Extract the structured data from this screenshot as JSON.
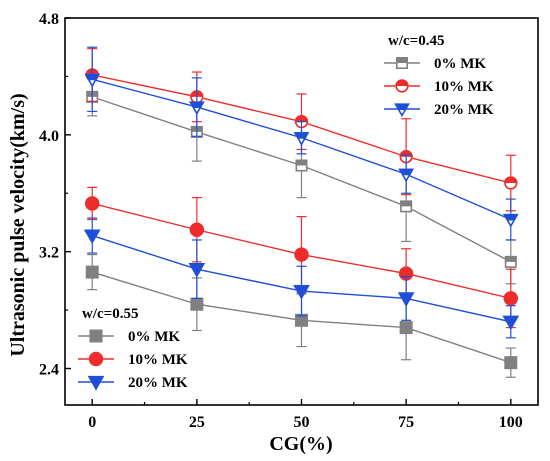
{
  "chart_data": {
    "type": "line",
    "title": "",
    "xlabel": "CG(%)",
    "ylabel": "Ultrasonic pulse velocity(km/s)",
    "x": [
      0,
      25,
      50,
      75,
      100
    ],
    "x_ticks": [
      "0",
      "25",
      "50",
      "75",
      "100"
    ],
    "y_ticks": [
      "2.4",
      "3.2",
      "4.0",
      "4.8"
    ],
    "ylim": [
      2.15,
      4.8
    ],
    "grid": false,
    "groups": [
      {
        "legend_title": "w/c=0.45",
        "legend_position": "top-right",
        "series": [
          {
            "name": "0% MK",
            "color": "#808080",
            "marker": "square-half-open",
            "values": [
              4.26,
              4.02,
              3.79,
              3.51,
              3.13
            ],
            "errors": [
              0.13,
              0.2,
              0.22,
              0.24,
              0.15
            ]
          },
          {
            "name": "10% MK",
            "color": "#ee2c2c",
            "marker": "circle-half-open",
            "values": [
              4.41,
              4.26,
              4.09,
              3.85,
              3.67
            ],
            "errors": [
              0.18,
              0.17,
              0.19,
              0.26,
              0.19
            ]
          },
          {
            "name": "20% MK",
            "color": "#1f4fd6",
            "marker": "triangle-down-half-open",
            "values": [
              4.38,
              4.19,
              3.98,
              3.73,
              3.42
            ],
            "errors": [
              0.22,
              0.2,
              0.11,
              0.13,
              0.14
            ]
          }
        ]
      },
      {
        "legend_title": "w/c=0.55",
        "legend_position": "bottom-left",
        "series": [
          {
            "name": "0% MK",
            "color": "#808080",
            "marker": "square",
            "values": [
              3.06,
              2.84,
              2.73,
              2.68,
              2.44
            ],
            "errors": [
              0.12,
              0.18,
              0.18,
              0.22,
              0.1
            ]
          },
          {
            "name": "10% MK",
            "color": "#ee2c2c",
            "marker": "circle",
            "values": [
              3.53,
              3.35,
              3.18,
              3.05,
              2.88
            ],
            "errors": [
              0.11,
              0.22,
              0.26,
              0.17,
              0.2
            ]
          },
          {
            "name": "20% MK",
            "color": "#1f4fd6",
            "marker": "triangle-down",
            "values": [
              3.31,
              3.08,
              2.93,
              2.88,
              2.72
            ],
            "errors": [
              0.12,
              0.2,
              0.17,
              0.15,
              0.11
            ]
          }
        ]
      }
    ]
  }
}
